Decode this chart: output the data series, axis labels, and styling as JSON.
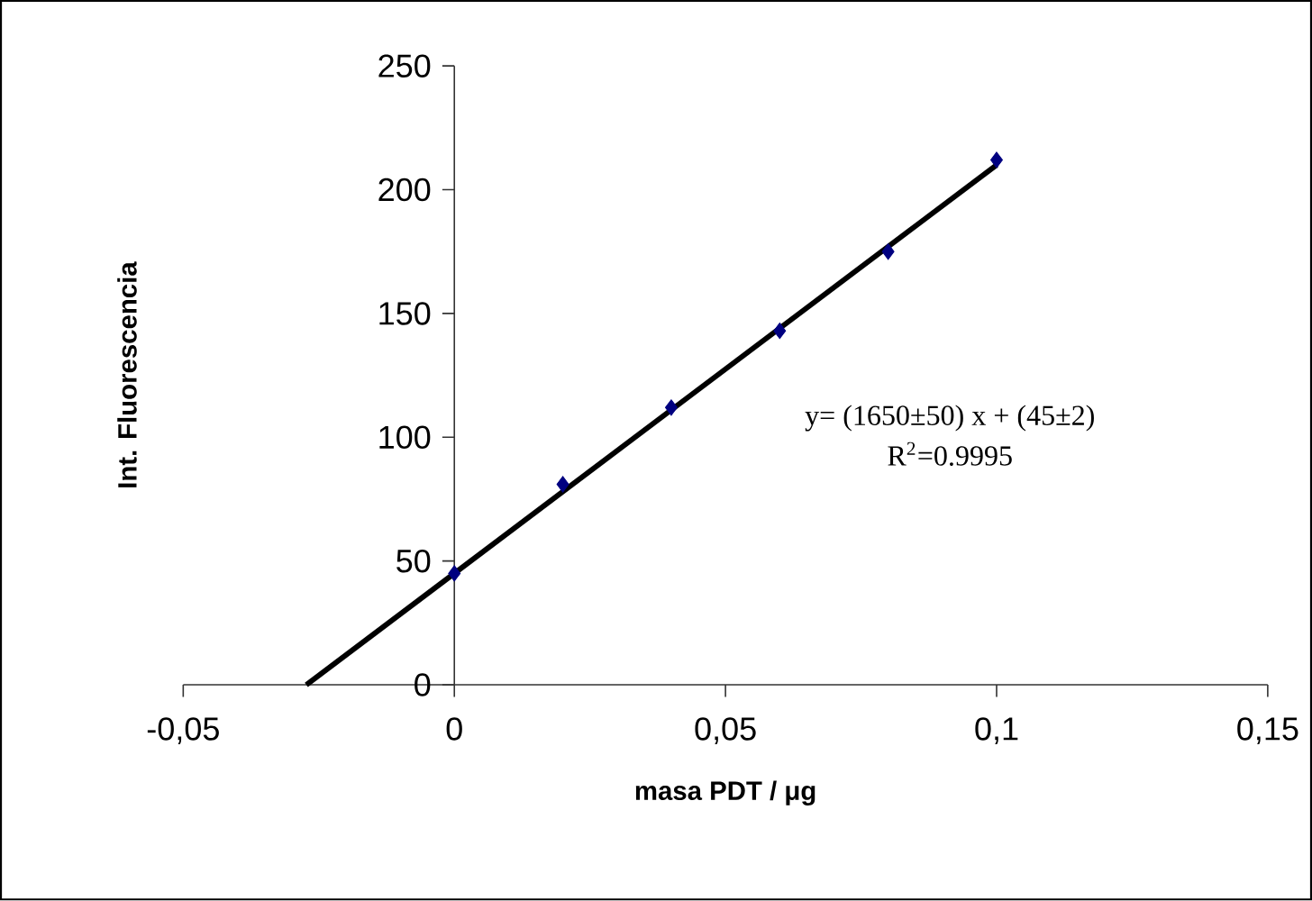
{
  "chart_data": {
    "type": "scatter",
    "xlabel": "masa PDT / μg",
    "ylabel": "Int. Fluorescencia",
    "annotations": [
      "y= (1650±50) x + (45±2)",
      "R$^{2}$=0.9995"
    ],
    "marker": "diamond",
    "xlim": [
      -0.05,
      0.15
    ],
    "ylim": [
      0,
      250
    ],
    "xticks": [
      {
        "value": -0.05,
        "label": "-0,05"
      },
      0,
      {
        "value": 0.05,
        "label": "0,05"
      },
      {
        "value": 0.1,
        "label": "0,1"
      },
      {
        "value": 0.15,
        "label": "0,15"
      }
    ],
    "yticks": [
      0,
      50,
      100,
      150,
      200,
      250
    ],
    "series": [
      {
        "color": "#000080",
        "x": [
          0,
          0.02,
          0.04,
          0.06,
          0.08,
          0.1
        ],
        "values": [
          45,
          81,
          112,
          143,
          175,
          212
        ]
      },
      {
        "type": "line",
        "color": "#000000",
        "marker": "none",
        "x": [
          -0.0273,
          0.1
        ],
        "values": [
          0,
          210
        ]
      }
    ]
  }
}
